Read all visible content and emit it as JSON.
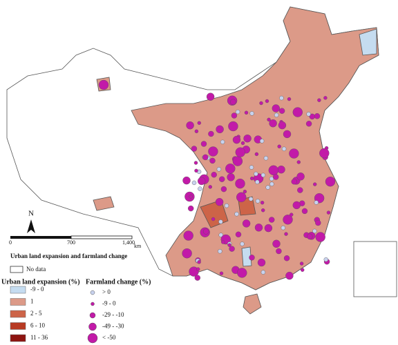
{
  "title": "Urban land expansion and farmland change",
  "no_data": "No data",
  "north": "N",
  "scale": {
    "labels": [
      "0",
      "700",
      "1,400"
    ],
    "unit": "km"
  },
  "urban_legend": {
    "title": "Urban land expansion (%)",
    "items": [
      {
        "label": "-9 - 0",
        "color": "#c5dcf0"
      },
      {
        "label": "1",
        "color": "#dc9a88"
      },
      {
        "label": "2 - 5",
        "color": "#cd6448"
      },
      {
        "label": "6 - 10",
        "color": "#b83a22"
      },
      {
        "label": "11 - 36",
        "color": "#8e1410"
      }
    ]
  },
  "farmland_legend": {
    "title": "Farmland change (%)",
    "items": [
      {
        "label": "> 0",
        "color": "#c8d2ee"
      },
      {
        "label": "-9 - 0",
        "color": "#c21aa8"
      },
      {
        "label": "-29 - -10",
        "color": "#c21aa8"
      },
      {
        "label": "-49 - -30",
        "color": "#c21aa8"
      },
      {
        "label": "< -50",
        "color": "#c21aa8"
      }
    ]
  }
}
